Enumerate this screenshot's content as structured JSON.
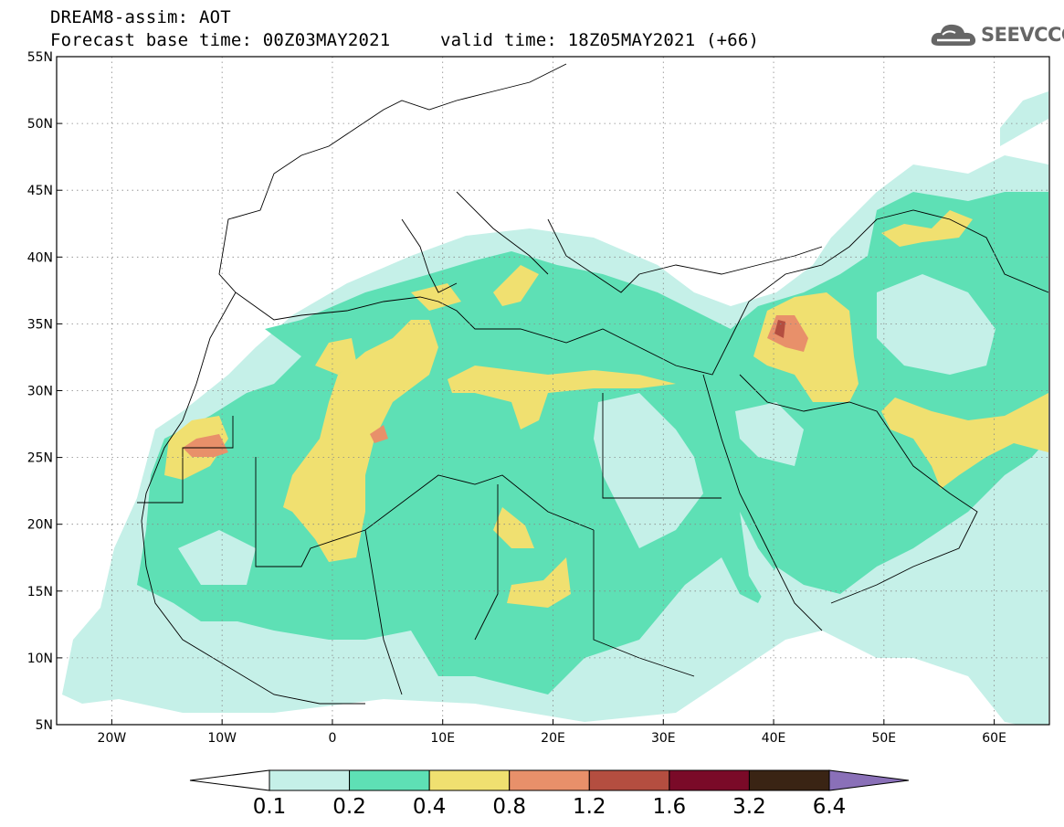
{
  "header": {
    "line1": "DREAM8-assim: AOT",
    "line2": "Forecast base time: 00Z03MAY2021",
    "line3": "valid time: 18Z05MAY2021 (+66)"
  },
  "logo": {
    "text": "SEEVCCC",
    "icon": "cloud-icon"
  },
  "map": {
    "lat_labels": [
      "55N",
      "50N",
      "45N",
      "40N",
      "35N",
      "30N",
      "25N",
      "20N",
      "15N",
      "10N",
      "5N"
    ],
    "lon_labels": [
      "20W",
      "10W",
      "0",
      "10E",
      "20E",
      "30E",
      "40E",
      "50E",
      "60E"
    ],
    "lon_range": [
      -25,
      65
    ],
    "lat_range": [
      5,
      55
    ],
    "grid": "dotted"
  },
  "colorbar": {
    "labels": [
      "0.1",
      "0.2",
      "0.4",
      "0.8",
      "1.2",
      "1.6",
      "3.2",
      "6.4"
    ],
    "colors": [
      "#ffffff",
      "#c5f0e8",
      "#5ee0b5",
      "#f0e070",
      "#e8906a",
      "#b44e40",
      "#7a0a28",
      "#3a2414",
      "#8a70b8"
    ]
  },
  "colors": {
    "level1": "#c5f0e8",
    "level2": "#5ee0b5",
    "level3": "#f0e070",
    "level4": "#e8906a",
    "level5": "#b44e40"
  }
}
